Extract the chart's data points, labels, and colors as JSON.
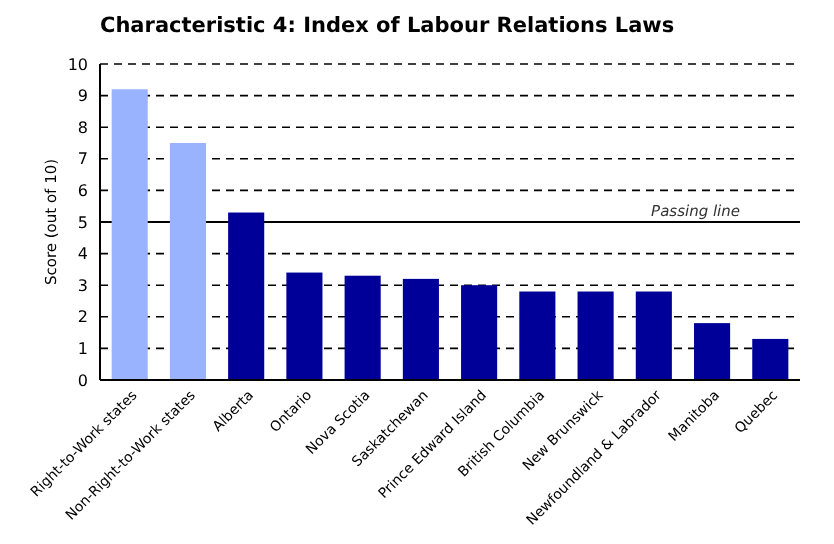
{
  "chart_data": {
    "type": "bar",
    "title": "Characteristic 4: Index of Labour Relations Laws",
    "ylabel": "Score (out of 10)",
    "categories": [
      "Right-to-Work states",
      "Non-Right-to-Work states",
      "Alberta",
      "Ontario",
      "Nova Scotia",
      "Saskatchewan",
      "Prince Edward Island",
      "British Columbia",
      "New Brunswick",
      "Newfoundland & Labrador",
      "Manitoba",
      "Quebec"
    ],
    "values": [
      9.2,
      7.5,
      5.3,
      3.4,
      3.3,
      3.2,
      3.0,
      2.8,
      2.8,
      2.8,
      1.8,
      1.3
    ],
    "colors": [
      "#99b3ff",
      "#99b3ff",
      "#000099",
      "#000099",
      "#000099",
      "#000099",
      "#000099",
      "#000099",
      "#000099",
      "#000099",
      "#000099",
      "#000099"
    ],
    "ylim": [
      0,
      10
    ],
    "yticks": [
      0,
      1,
      2,
      3,
      4,
      5,
      6,
      7,
      8,
      9,
      10
    ],
    "grid": "y",
    "ref_lines": [
      {
        "axis": "y",
        "value": 5,
        "label": "Passing line",
        "color": "#000000",
        "line_style": "solid"
      }
    ]
  }
}
